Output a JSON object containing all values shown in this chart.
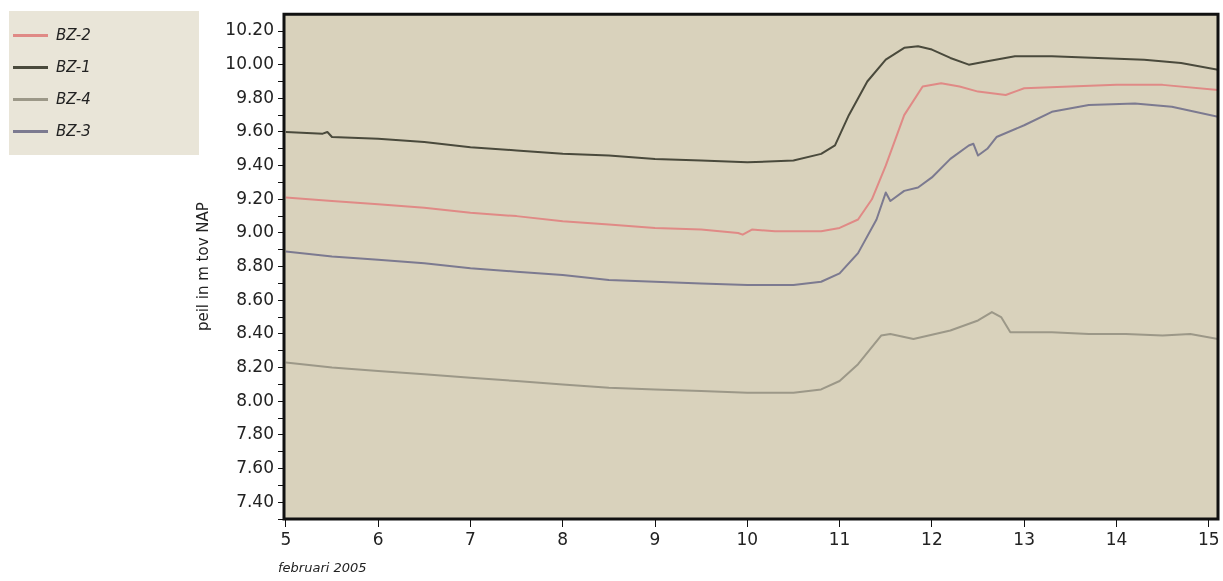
{
  "chart_data": {
    "type": "line",
    "xlabel": "februari 2005",
    "ylabel": "peil in m tov NAP",
    "xlim": [
      4.98,
      15.1
    ],
    "xticks": [
      5,
      6,
      7,
      8,
      9,
      10,
      11,
      12,
      13,
      14,
      15
    ],
    "ylim": [
      7.3,
      10.3
    ],
    "yticks": [
      {
        "value": 7.3,
        "label": null
      },
      {
        "value": 7.4,
        "label": "7.40"
      },
      {
        "value": 7.5,
        "label": null
      },
      {
        "value": 7.6,
        "label": "7.60"
      },
      {
        "value": 7.7,
        "label": null
      },
      {
        "value": 7.8,
        "label": "7.80"
      },
      {
        "value": 7.9,
        "label": null
      },
      {
        "value": 8.0,
        "label": "8.00"
      },
      {
        "value": 8.1,
        "label": null
      },
      {
        "value": 8.2,
        "label": "8.20"
      },
      {
        "value": 8.3,
        "label": null
      },
      {
        "value": 8.4,
        "label": "8.40"
      },
      {
        "value": 8.5,
        "label": null
      },
      {
        "value": 8.6,
        "label": "8.60"
      },
      {
        "value": 8.7,
        "label": null
      },
      {
        "value": 8.8,
        "label": "8.80"
      },
      {
        "value": 8.9,
        "label": null
      },
      {
        "value": 9.0,
        "label": "9.00"
      },
      {
        "value": 9.1,
        "label": null
      },
      {
        "value": 9.2,
        "label": "9.20"
      },
      {
        "value": 9.3,
        "label": null
      },
      {
        "value": 9.4,
        "label": "9.40"
      },
      {
        "value": 9.5,
        "label": null
      },
      {
        "value": 9.6,
        "label": "9.60"
      },
      {
        "value": 9.7,
        "label": null
      },
      {
        "value": 9.8,
        "label": "9.80"
      },
      {
        "value": 9.9,
        "label": null
      },
      {
        "value": 10.0,
        "label": "10.00"
      },
      {
        "value": 10.1,
        "label": null
      },
      {
        "value": 10.2,
        "label": "10.20"
      }
    ],
    "legend": "top left",
    "grid": false,
    "marker": "none",
    "line_style": "solid",
    "series": [
      {
        "name": "BZ-2",
        "color": "#e08a86",
        "x": [
          5.0,
          5.5,
          6,
          6.5,
          7,
          7.5,
          8,
          8.5,
          9,
          9.5,
          9.9,
          9.95,
          10.05,
          10.3,
          10.8,
          11.0,
          11.2,
          11.35,
          11.5,
          11.7,
          11.9,
          12.1,
          12.3,
          12.5,
          12.8,
          13.0,
          13.5,
          14,
          14.5,
          15.1
        ],
        "values": [
          9.21,
          9.19,
          9.17,
          9.15,
          9.12,
          9.1,
          9.07,
          9.05,
          9.03,
          9.02,
          9.0,
          8.99,
          9.02,
          9.01,
          9.01,
          9.03,
          9.08,
          9.2,
          9.4,
          9.7,
          9.87,
          9.89,
          9.87,
          9.84,
          9.82,
          9.86,
          9.87,
          9.88,
          9.88,
          9.85
        ]
      },
      {
        "name": "BZ-1",
        "color": "#4a4a3c",
        "x": [
          5.0,
          5.4,
          5.45,
          5.5,
          6,
          6.5,
          7,
          7.5,
          8,
          8.5,
          9,
          9.5,
          10,
          10.5,
          10.8,
          10.95,
          11.1,
          11.3,
          11.5,
          11.7,
          11.85,
          12.0,
          12.2,
          12.4,
          12.6,
          12.9,
          13.3,
          13.8,
          14.3,
          14.7,
          15.1
        ],
        "values": [
          9.6,
          9.59,
          9.6,
          9.57,
          9.56,
          9.54,
          9.51,
          9.49,
          9.47,
          9.46,
          9.44,
          9.43,
          9.42,
          9.43,
          9.47,
          9.52,
          9.7,
          9.9,
          10.03,
          10.1,
          10.11,
          10.09,
          10.04,
          10.0,
          10.02,
          10.05,
          10.05,
          10.04,
          10.03,
          10.01,
          9.97
        ]
      },
      {
        "name": "BZ-4",
        "color": "#9c9888",
        "x": [
          5.0,
          5.5,
          6,
          6.5,
          7,
          7.5,
          8,
          8.5,
          9,
          9.5,
          10,
          10.5,
          10.8,
          11.0,
          11.2,
          11.45,
          11.55,
          11.8,
          12.2,
          12.5,
          12.65,
          12.75,
          12.85,
          13.3,
          13.7,
          14.1,
          14.5,
          14.8,
          15.1
        ],
        "values": [
          8.23,
          8.2,
          8.18,
          8.16,
          8.14,
          8.12,
          8.1,
          8.08,
          8.07,
          8.06,
          8.05,
          8.05,
          8.07,
          8.12,
          8.22,
          8.39,
          8.4,
          8.37,
          8.42,
          8.48,
          8.53,
          8.5,
          8.41,
          8.41,
          8.4,
          8.4,
          8.39,
          8.4,
          8.37
        ]
      },
      {
        "name": "BZ-3",
        "color": "#7c7a90",
        "x": [
          5.0,
          5.5,
          6,
          6.5,
          7,
          7.5,
          8,
          8.5,
          9,
          9.5,
          10,
          10.5,
          10.8,
          11.0,
          11.2,
          11.4,
          11.5,
          11.55,
          11.7,
          11.85,
          12.0,
          12.2,
          12.4,
          12.45,
          12.5,
          12.6,
          12.7,
          13.0,
          13.3,
          13.7,
          14.2,
          14.6,
          15.1
        ],
        "values": [
          8.89,
          8.86,
          8.84,
          8.82,
          8.79,
          8.77,
          8.75,
          8.72,
          8.71,
          8.7,
          8.69,
          8.69,
          8.71,
          8.76,
          8.88,
          9.08,
          9.24,
          9.19,
          9.25,
          9.27,
          9.33,
          9.44,
          9.52,
          9.53,
          9.46,
          9.5,
          9.57,
          9.64,
          9.72,
          9.76,
          9.77,
          9.75,
          9.69
        ]
      }
    ]
  }
}
